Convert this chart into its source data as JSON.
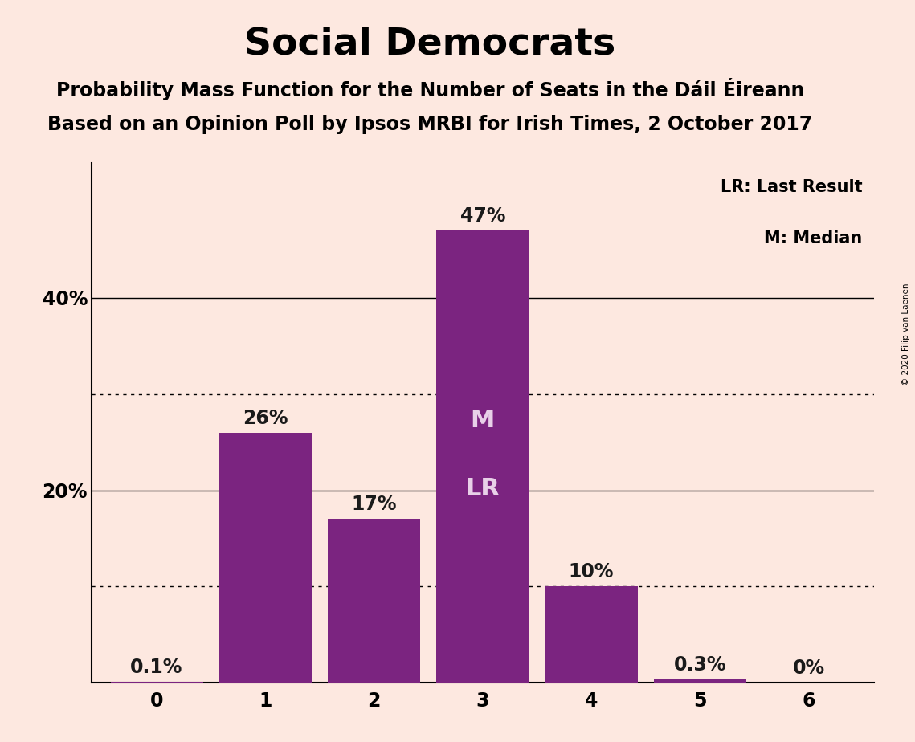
{
  "title": "Social Democrats",
  "subtitle1": "Probability Mass Function for the Number of Seats in the Dáil Éireann",
  "subtitle2": "Based on an Opinion Poll by Ipsos MRBI for Irish Times, 2 October 2017",
  "copyright_text": "© 2020 Filip van Laenen",
  "categories": [
    0,
    1,
    2,
    3,
    4,
    5,
    6
  ],
  "values": [
    0.1,
    26,
    17,
    47,
    10,
    0.3,
    0
  ],
  "labels": [
    "0.1%",
    "26%",
    "17%",
    "47%",
    "10%",
    "0.3%",
    "0%"
  ],
  "bar_color": "#7B2480",
  "background_color": "#FDE8E0",
  "title_fontsize": 34,
  "subtitle_fontsize": 17,
  "label_fontsize": 17,
  "tick_fontsize": 17,
  "ytick_labels": [
    "20%",
    "40%"
  ],
  "ytick_values": [
    20,
    40
  ],
  "dotted_gridlines": [
    10,
    30
  ],
  "solid_gridlines": [
    20,
    40
  ],
  "median_bar": 3,
  "lr_bar": 3,
  "legend_lr": "LR: Last Result",
  "legend_m": "M: Median",
  "inside_label_color": "#E8D0E8",
  "outside_label_color": "#1a1a1a",
  "ylim_max": 54
}
